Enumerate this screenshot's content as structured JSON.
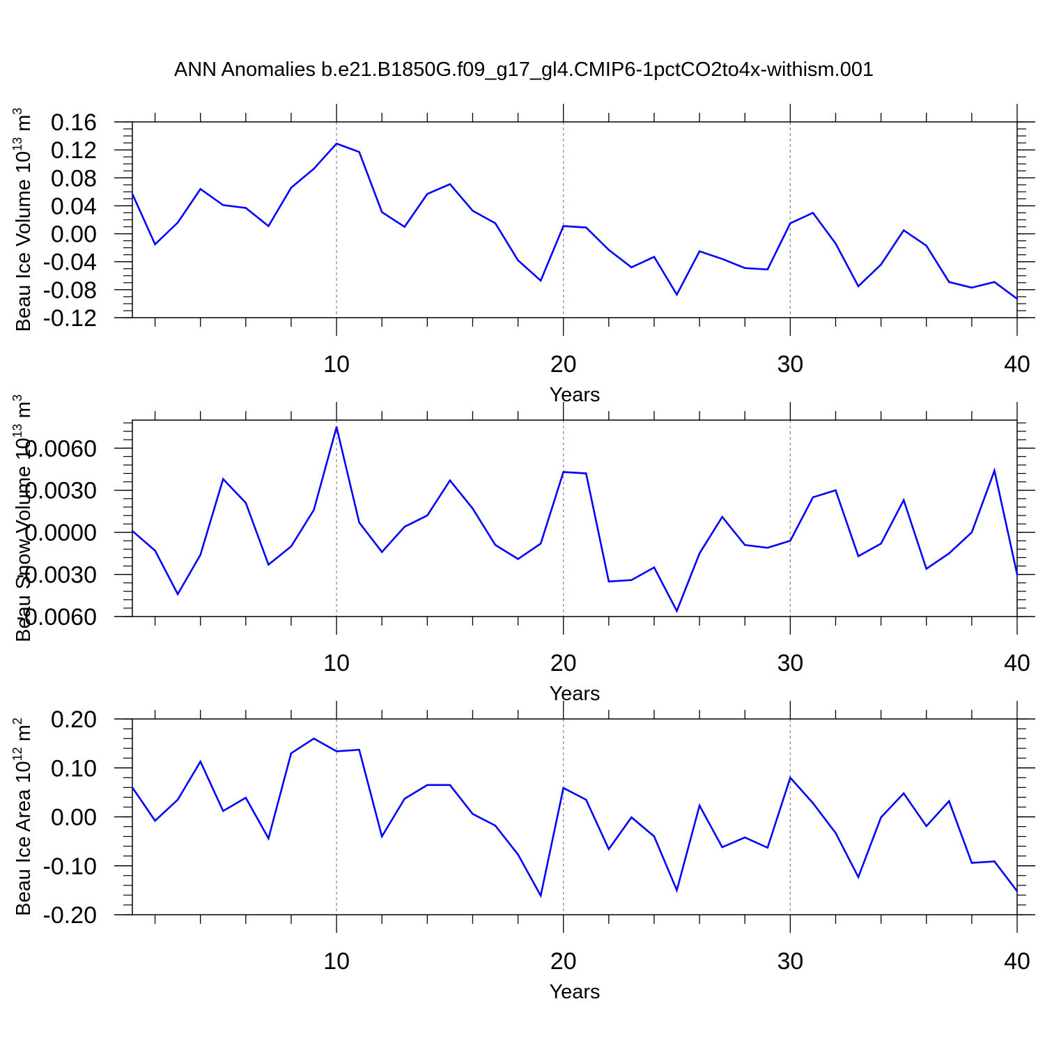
{
  "title": "ANN Anomalies b.e21.B1850G.f09_g17_gl4.CMIP6-1pctCO2to4x-withism.001",
  "chart_data": [
    {
      "type": "line",
      "ylabel": "Beau Ice Volume 10",
      "ylabel_sup": "13",
      "ylabel_unit": " m",
      "ylabel_unit_sup": "3",
      "xlabel": "Years",
      "xlim": [
        1,
        40
      ],
      "ylim": [
        -0.12,
        0.16
      ],
      "yticks": [
        -0.12,
        -0.08,
        -0.04,
        0.0,
        0.04,
        0.08,
        0.12,
        0.16
      ],
      "ytick_labels": [
        "-0.12",
        "-0.08",
        "-0.04",
        "0.00",
        "0.04",
        "0.08",
        "0.12",
        "0.16"
      ],
      "yminor_step": 0.01,
      "xticks": [
        10,
        20,
        30,
        40
      ],
      "xtick_labels": [
        "10",
        "20",
        "30",
        "40"
      ],
      "grid_x": [
        10,
        20,
        30
      ],
      "line_color": "#0000ff",
      "x": [
        1,
        2,
        3,
        4,
        5,
        6,
        7,
        8,
        9,
        10,
        11,
        12,
        13,
        14,
        15,
        16,
        17,
        18,
        19,
        20,
        21,
        22,
        23,
        24,
        25,
        26,
        27,
        28,
        29,
        30,
        31,
        32,
        33,
        34,
        35,
        36,
        37,
        38,
        39,
        40
      ],
      "values": [
        0.057,
        -0.015,
        0.016,
        0.064,
        0.041,
        0.037,
        0.011,
        0.066,
        0.093,
        0.129,
        0.117,
        0.031,
        0.01,
        0.057,
        0.071,
        0.033,
        0.015,
        -0.038,
        -0.067,
        0.011,
        0.009,
        -0.023,
        -0.048,
        -0.033,
        -0.087,
        -0.025,
        -0.036,
        -0.049,
        -0.051,
        0.015,
        0.03,
        -0.014,
        -0.075,
        -0.044,
        0.005,
        -0.017,
        -0.069,
        -0.077,
        -0.069,
        -0.093
      ]
    },
    {
      "type": "line",
      "ylabel": "Beau Snow Volume 10",
      "ylabel_sup": "13",
      "ylabel_unit": " m",
      "ylabel_unit_sup": "3",
      "xlabel": "Years",
      "xlim": [
        1,
        40
      ],
      "ylim": [
        -0.006,
        0.008
      ],
      "yticks": [
        -0.006,
        -0.003,
        0.0,
        0.003,
        0.006
      ],
      "ytick_labels": [
        "-0.0060",
        "-0.0030",
        "0.0000",
        "0.0030",
        "0.0060"
      ],
      "yminor_step": 0.0006,
      "xticks": [
        10,
        20,
        30,
        40
      ],
      "xtick_labels": [
        "10",
        "20",
        "30",
        "40"
      ],
      "grid_x": [
        10,
        20,
        30
      ],
      "line_color": "#0000ff",
      "x": [
        1,
        2,
        3,
        4,
        5,
        6,
        7,
        8,
        9,
        10,
        11,
        12,
        13,
        14,
        15,
        16,
        17,
        18,
        19,
        20,
        21,
        22,
        23,
        24,
        25,
        26,
        27,
        28,
        29,
        30,
        31,
        32,
        33,
        34,
        35,
        36,
        37,
        38,
        39,
        40
      ],
      "values": [
        0.0001,
        -0.0013,
        -0.0044,
        -0.0016,
        0.0038,
        0.0021,
        -0.0023,
        -0.001,
        0.0016,
        0.0075,
        0.0007,
        -0.0014,
        0.0004,
        0.0012,
        0.0037,
        0.0017,
        -0.0009,
        -0.0019,
        -0.0008,
        0.0043,
        0.0042,
        -0.0035,
        -0.0034,
        -0.0025,
        -0.0056,
        -0.0015,
        0.0011,
        -0.0009,
        -0.0011,
        -0.0006,
        0.0025,
        0.003,
        -0.0017,
        -0.0008,
        0.0023,
        -0.0026,
        -0.0015,
        0.0,
        0.0044,
        -0.003
      ]
    },
    {
      "type": "line",
      "ylabel": "Beau Ice Area 10",
      "ylabel_sup": "12",
      "ylabel_unit": " m",
      "ylabel_unit_sup": "2",
      "xlabel": "Years",
      "xlim": [
        1,
        40
      ],
      "ylim": [
        -0.2,
        0.2
      ],
      "yticks": [
        -0.2,
        -0.1,
        0.0,
        0.1,
        0.2
      ],
      "ytick_labels": [
        "-0.20",
        "-0.10",
        "0.00",
        "0.10",
        "0.20"
      ],
      "yminor_step": 0.02,
      "xticks": [
        10,
        20,
        30,
        40
      ],
      "xtick_labels": [
        "10",
        "20",
        "30",
        "40"
      ],
      "grid_x": [
        10,
        20,
        30
      ],
      "line_color": "#0000ff",
      "x": [
        1,
        2,
        3,
        4,
        5,
        6,
        7,
        8,
        9,
        10,
        11,
        12,
        13,
        14,
        15,
        16,
        17,
        18,
        19,
        20,
        21,
        22,
        23,
        24,
        25,
        26,
        27,
        28,
        29,
        30,
        31,
        32,
        33,
        34,
        35,
        36,
        37,
        38,
        39,
        40
      ],
      "values": [
        0.06,
        -0.008,
        0.035,
        0.113,
        0.012,
        0.039,
        -0.044,
        0.13,
        0.16,
        0.134,
        0.137,
        -0.04,
        0.037,
        0.065,
        0.065,
        0.006,
        -0.018,
        -0.077,
        -0.161,
        0.059,
        0.035,
        -0.066,
        -0.001,
        -0.04,
        -0.15,
        0.023,
        -0.062,
        -0.042,
        -0.063,
        0.08,
        0.028,
        -0.033,
        -0.123,
        -0.001,
        0.048,
        -0.019,
        0.032,
        -0.094,
        -0.091,
        -0.152
      ]
    }
  ]
}
